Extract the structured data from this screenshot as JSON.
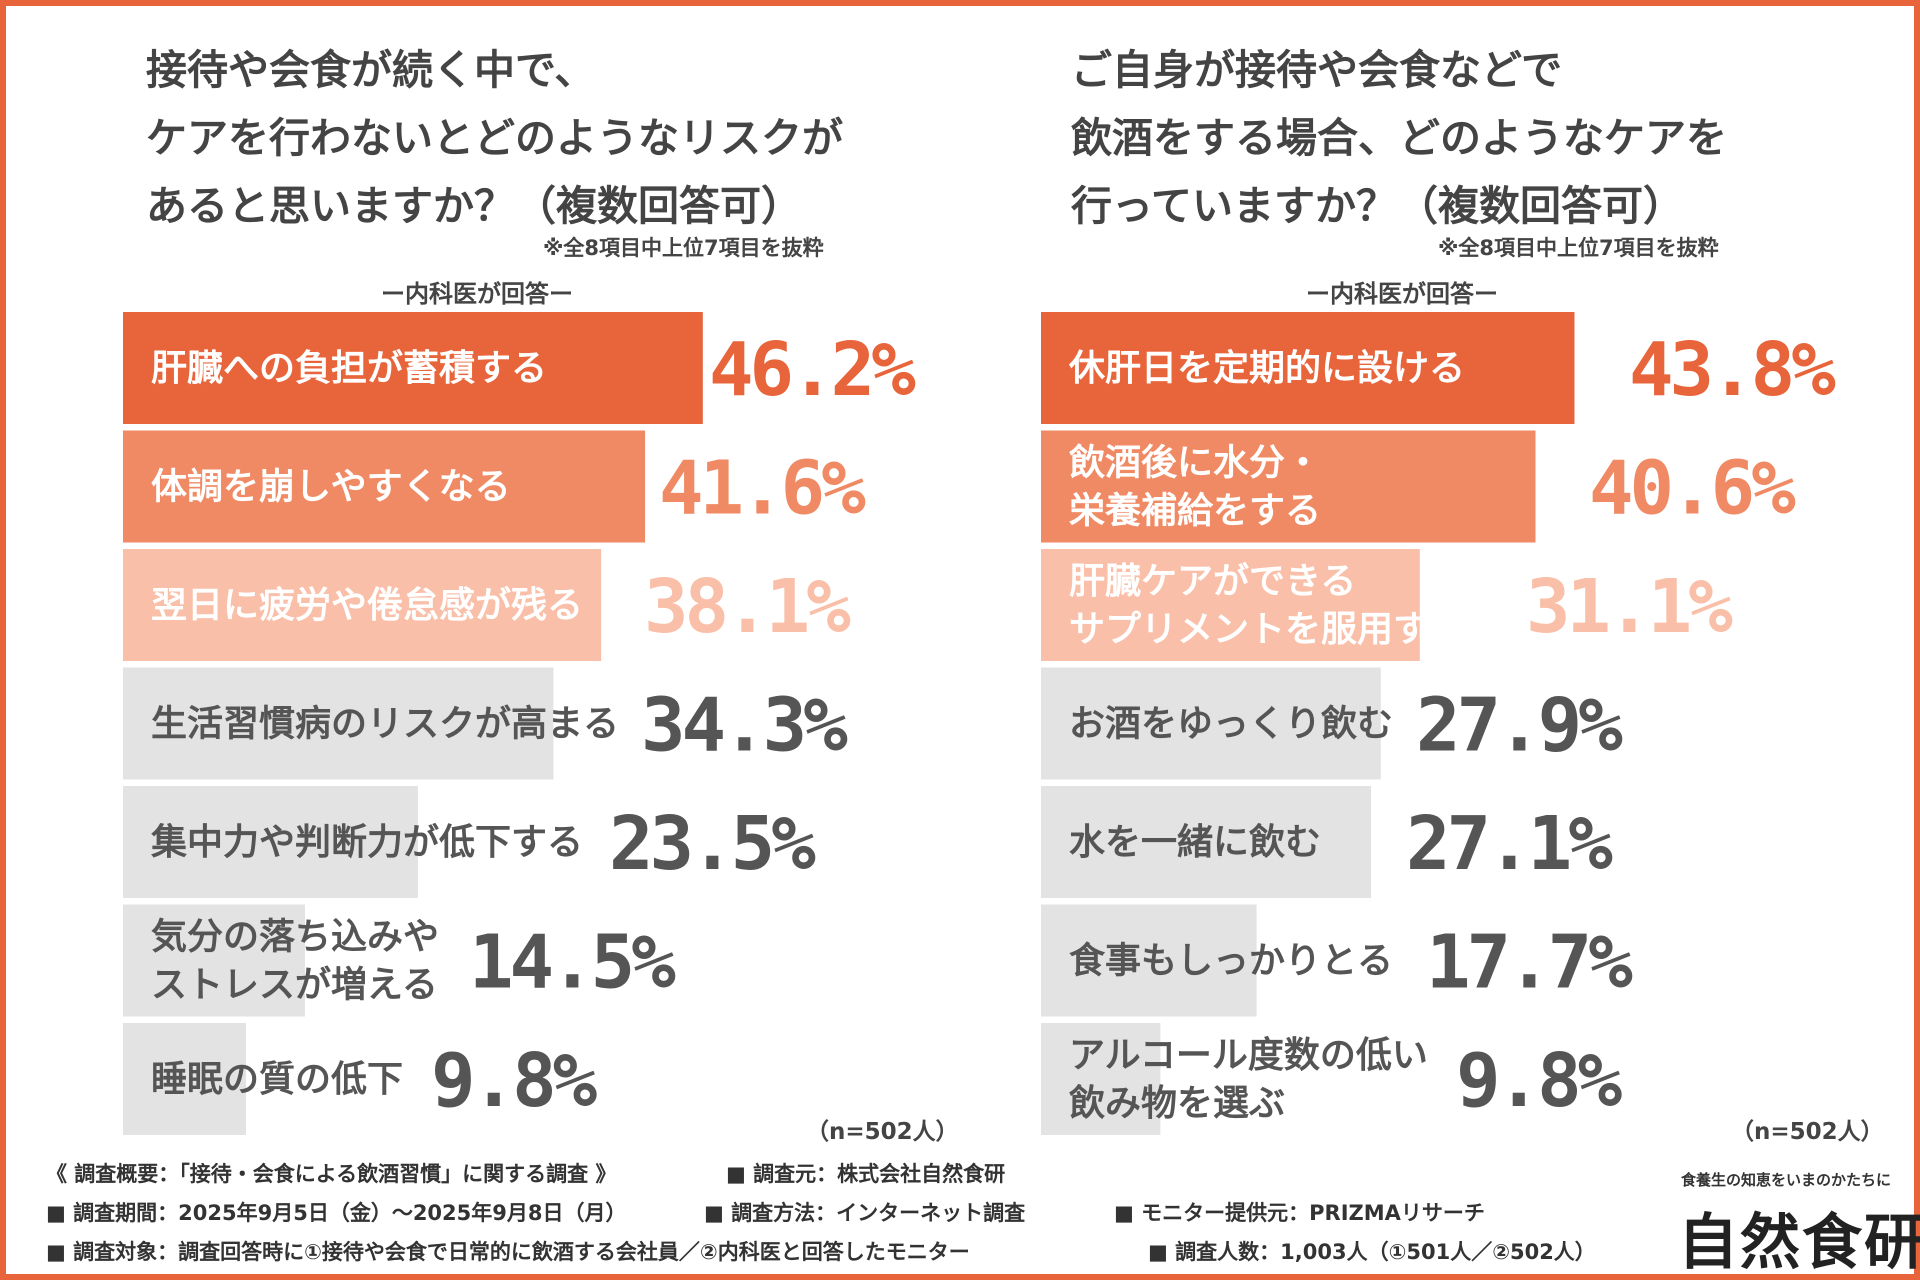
{
  "charts": [
    {
      "title_lines": [
        "接待や会食が続く中で、",
        "ケアを行わないとどのようなリスクが",
        "あると思いますか？（複数回答可）"
      ],
      "note": "※全8項目中上位7項目を抜粋",
      "respondent": "ー内科医が回答ー",
      "sample": "（n=502人）"
    },
    {
      "title_lines": [
        "ご自身が接待や会食などで",
        "飲酒をする場合、どのようなケアを",
        "行っていますか？（複数回答可）"
      ],
      "note": "※全8項目中上位7項目を抜粋",
      "respondent": "ー内科医が回答ー",
      "sample": "（n=502人）"
    }
  ],
  "chart_data": [
    {
      "type": "bar",
      "orientation": "horizontal",
      "title": "接待や会食が続く中で、ケアを行わないとどのようなリスクがあると思いますか？（複数回答可）",
      "categories": [
        [
          "肝臓への負担が蓄積する"
        ],
        [
          "体調を崩しやすくなる"
        ],
        [
          "翌日に疲労や倦怠感が残る"
        ],
        [
          "生活習慣病のリスクが高まる"
        ],
        [
          "集中力や判断力が低下する"
        ],
        [
          "気分の落ち込みや",
          "ストレスが増える"
        ],
        [
          "睡眠の質の低下"
        ]
      ],
      "values": [
        46.2,
        41.6,
        38.1,
        34.3,
        23.5,
        14.5,
        9.8
      ],
      "value_labels": [
        "46.2%",
        "41.6%",
        "38.1%",
        "34.3%",
        "23.5%",
        "14.5%",
        "9.8%"
      ],
      "unit": "%",
      "bar_colors": [
        "#e8643a",
        "#f08a64",
        "#f9bfa8",
        "#e3e3e3",
        "#e3e3e3",
        "#e3e3e3",
        "#e3e3e3"
      ],
      "value_colors": [
        "#e8643a",
        "#f08a64",
        "#f9bfa8",
        "#555555",
        "#555555",
        "#555555",
        "#555555"
      ],
      "label_colors": [
        "#ffffff",
        "#ffffff",
        "#ffffff",
        "#555555",
        "#555555",
        "#555555",
        "#555555"
      ],
      "grid": false
    },
    {
      "type": "bar",
      "orientation": "horizontal",
      "title": "ご自身が接待や会食などで飲酒をする場合、どのようなケアを行っていますか？（複数回答可）",
      "categories": [
        [
          "休肝日を定期的に設ける"
        ],
        [
          "飲酒後に水分・",
          "栄養補給をする"
        ],
        [
          "肝臓ケアができる",
          "サプリメントを服用する"
        ],
        [
          "お酒をゆっくり飲む"
        ],
        [
          "水を一緒に飲む"
        ],
        [
          "食事もしっかりとる"
        ],
        [
          "アルコール度数の低い",
          "飲み物を選ぶ"
        ]
      ],
      "values": [
        43.8,
        40.6,
        31.1,
        27.9,
        27.1,
        17.7,
        9.8
      ],
      "value_labels": [
        "43.8%",
        "40.6%",
        "31.1%",
        "27.9%",
        "27.1%",
        "17.7%",
        "9.8%"
      ],
      "unit": "%",
      "bar_colors": [
        "#e8643a",
        "#f08a64",
        "#f9bfa8",
        "#e3e3e3",
        "#e3e3e3",
        "#e3e3e3",
        "#e3e3e3"
      ],
      "value_colors": [
        "#e8643a",
        "#f08a64",
        "#f9bfa8",
        "#555555",
        "#555555",
        "#555555",
        "#555555"
      ],
      "label_colors": [
        "#ffffff",
        "#ffffff",
        "#ffffff",
        "#555555",
        "#555555",
        "#555555",
        "#555555"
      ],
      "grid": false
    }
  ],
  "footer": {
    "overview": "《 調査概要：「接待・会食による飲酒習慣」に関する調査 》",
    "source": "■ 調査元：株式会社自然食研",
    "period": "■ 調査期間：2025年9月5日（金）～2025年9月8日（月）",
    "method": "■ 調査方法：インターネット調査",
    "provider": "■ モニター提供元：PRIZMAリサーチ",
    "target": "■ 調査対象：調査回答時に①接待や会食で日常的に飲酒する会社員／②内科医と回答したモニター",
    "count": "■ 調査人数：1,003人（①501人／②502人）"
  },
  "brand": {
    "tagline": "食養生の知恵をいまのかたちに",
    "logo": "自然食研"
  },
  "colors": {
    "accent": "#e8643a",
    "accent_mid": "#f08a64",
    "accent_light": "#f9bfa8",
    "neutral_bar": "#e3e3e3",
    "text": "#444444"
  }
}
